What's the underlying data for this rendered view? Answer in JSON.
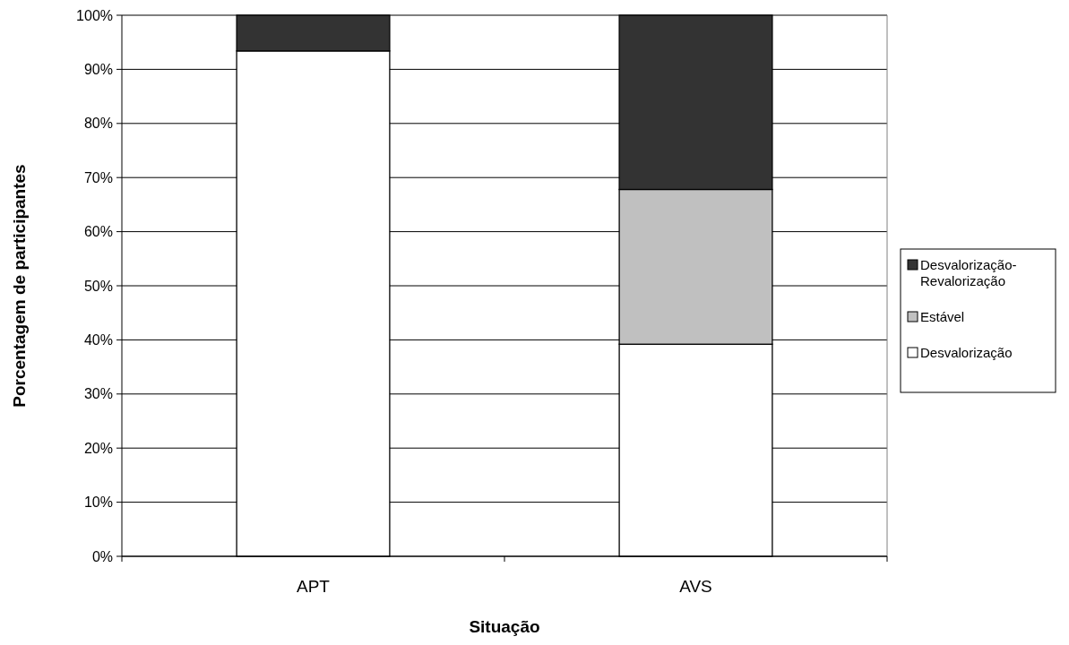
{
  "chart_data": {
    "type": "bar",
    "stacked": true,
    "xlabel": "Situação",
    "ylabel": "Porcentagem de participantes",
    "categories": [
      "APT",
      "AVS"
    ],
    "series": [
      {
        "name": "Desvalorização",
        "color": "#ffffff",
        "values": [
          93.4,
          39.2
        ]
      },
      {
        "name": "Estável",
        "color": "#c0c0c0",
        "values": [
          0,
          28.6
        ]
      },
      {
        "name": "Desvalorização-Revalorização",
        "color": "#333333",
        "values": [
          6.6,
          32.2
        ]
      }
    ],
    "ylim": [
      0,
      100
    ],
    "yticks": [
      {
        "value": 0,
        "label": "0%"
      },
      {
        "value": 10,
        "label": "10%"
      },
      {
        "value": 20,
        "label": "20%"
      },
      {
        "value": 30,
        "label": "30%"
      },
      {
        "value": 40,
        "label": "40%"
      },
      {
        "value": 50,
        "label": "50%"
      },
      {
        "value": 60,
        "label": "60%"
      },
      {
        "value": 70,
        "label": "70%"
      },
      {
        "value": 80,
        "label": "80%"
      },
      {
        "value": 90,
        "label": "90%"
      },
      {
        "value": 100,
        "label": "100%"
      }
    ],
    "grid": "y",
    "legend": "right"
  }
}
